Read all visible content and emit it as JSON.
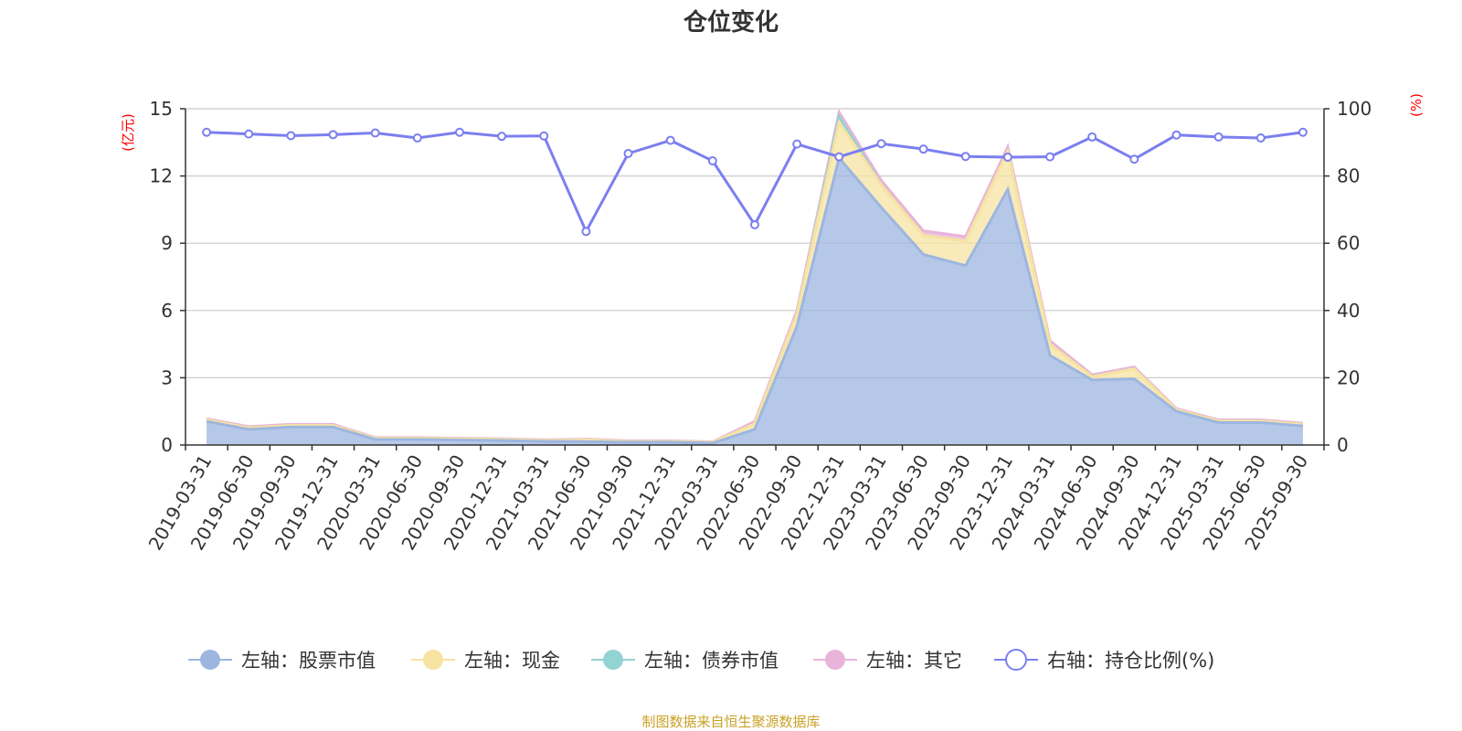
{
  "chart_data": {
    "type": "area",
    "title": "仓位变化",
    "left_unit": "(亿元)",
    "right_unit": "(%)",
    "left_ylim": [
      0,
      15
    ],
    "left_ticks": [
      "0",
      "3",
      "6",
      "9",
      "12",
      "15"
    ],
    "right_ylim": [
      0,
      100
    ],
    "right_ticks": [
      "0",
      "20",
      "40",
      "60",
      "80",
      "100"
    ],
    "categories": [
      "2019-03-31",
      "2019-06-30",
      "2019-09-30",
      "2019-12-31",
      "2020-03-31",
      "2020-06-30",
      "2020-09-30",
      "2020-12-31",
      "2021-03-31",
      "2021-06-30",
      "2021-09-30",
      "2021-12-31",
      "2022-03-31",
      "2022-06-30",
      "2022-09-30",
      "2022-12-31",
      "2023-03-31",
      "2023-06-30",
      "2023-09-30",
      "2023-12-31",
      "2024-03-31",
      "2024-06-30",
      "2024-09-30",
      "2024-12-31",
      "2025-03-31",
      "2025-06-30",
      "2025-09-30"
    ],
    "series": [
      {
        "name": "左轴：股票市值",
        "axis": "left",
        "color": "#9db6e0",
        "values": [
          1.05,
          0.7,
          0.8,
          0.8,
          0.25,
          0.25,
          0.22,
          0.2,
          0.16,
          0.15,
          0.12,
          0.12,
          0.08,
          0.7,
          5.3,
          12.8,
          10.6,
          8.5,
          8.0,
          11.4,
          4.0,
          2.9,
          2.95,
          1.5,
          1.0,
          1.0,
          0.85
        ]
      },
      {
        "name": "左轴：现金",
        "axis": "left",
        "color": "#f7e3a1",
        "values": [
          0.07,
          0.07,
          0.07,
          0.07,
          0.05,
          0.05,
          0.05,
          0.05,
          0.04,
          0.08,
          0.04,
          0.04,
          0.03,
          0.25,
          0.55,
          1.6,
          1.0,
          0.85,
          1.1,
          1.7,
          0.5,
          0.15,
          0.45,
          0.07,
          0.07,
          0.07,
          0.07
        ]
      },
      {
        "name": "左轴：债券市值",
        "axis": "left",
        "color": "#92d3d3",
        "values": [
          0,
          0,
          0,
          0,
          0,
          0,
          0,
          0,
          0,
          0,
          0,
          0,
          0,
          0,
          0,
          0.25,
          0,
          0,
          0,
          0,
          0,
          0,
          0,
          0,
          0,
          0,
          0
        ]
      },
      {
        "name": "左轴：其它",
        "axis": "left",
        "color": "#e9b4d9",
        "values": [
          0.05,
          0.05,
          0.05,
          0.05,
          0.03,
          0.03,
          0.03,
          0.03,
          0.03,
          0.03,
          0.03,
          0.03,
          0.03,
          0.1,
          0.15,
          0.2,
          0.2,
          0.2,
          0.2,
          0.2,
          0.15,
          0.08,
          0.08,
          0.05,
          0.05,
          0.05,
          0.05
        ]
      },
      {
        "name": "右轴：持仓比例(%)",
        "axis": "right",
        "color": "#7b7fef",
        "type": "line",
        "values": [
          93,
          92.5,
          92,
          92.3,
          92.8,
          91.3,
          93,
          91.8,
          91.9,
          63.5,
          86.7,
          90.6,
          84.5,
          65.5,
          89.5,
          85.7,
          89.6,
          88,
          85.8,
          85.6,
          85.7,
          91.6,
          85,
          92.2,
          91.6,
          91.3,
          93
        ]
      }
    ],
    "legend_position": "bottom",
    "grid": true
  },
  "source_note": "制图数据来自恒生聚源数据库"
}
